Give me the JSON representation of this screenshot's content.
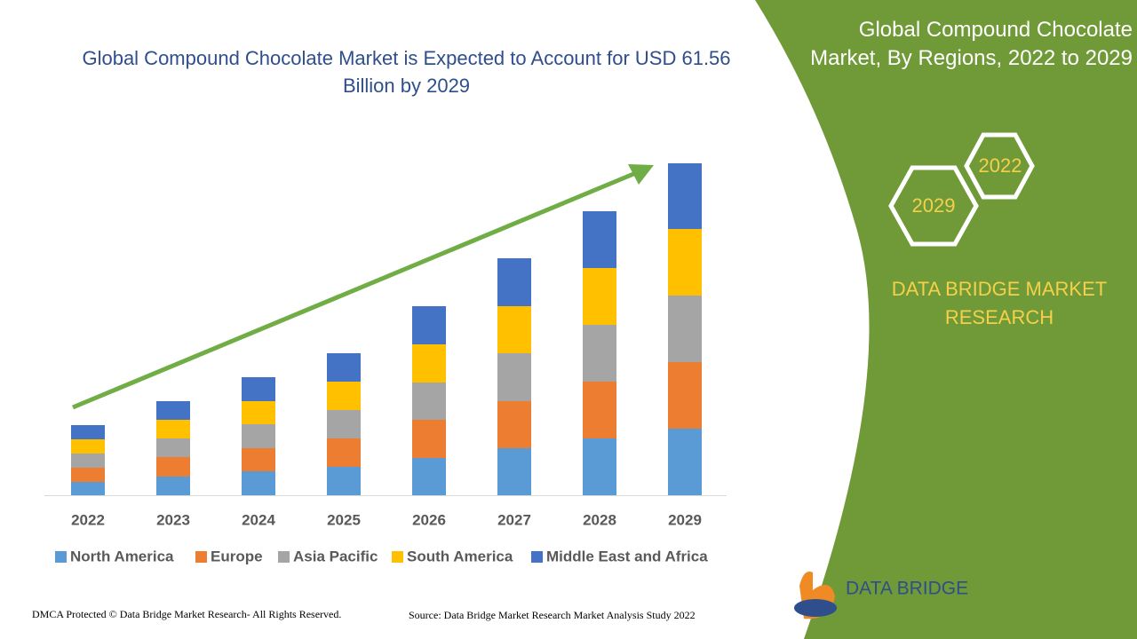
{
  "chart_data": {
    "type": "stacked-bar",
    "title": "Global Compound Chocolate Market is Expected to Account for USD 61.56 Billion by 2029",
    "categories": [
      "2022",
      "2023",
      "2024",
      "2025",
      "2026",
      "2027",
      "2028",
      "2029"
    ],
    "series": [
      {
        "name": "North America",
        "color": "#5b9bd5",
        "values": [
          15,
          21,
          27,
          32,
          42,
          53,
          64,
          75
        ]
      },
      {
        "name": "Europe",
        "color": "#ed7d31",
        "values": [
          16,
          22,
          26,
          32,
          43,
          53,
          64,
          75
        ]
      },
      {
        "name": "Asia Pacific",
        "color": "#a5a5a5",
        "values": [
          16,
          21,
          27,
          32,
          42,
          54,
          64,
          75
        ]
      },
      {
        "name": "South America",
        "color": "#ffc000",
        "values": [
          16,
          21,
          26,
          32,
          43,
          53,
          64,
          75
        ]
      },
      {
        "name": "Middle East and Africa",
        "color": "#4472c4",
        "values": [
          16,
          21,
          27,
          32,
          43,
          54,
          64,
          74
        ]
      }
    ]
  },
  "panel": {
    "title": "Global Compound Chocolate Market, By Regions, 2022 to 2029",
    "hexagon_top": "2022",
    "hexagon_bottom": "2029",
    "brand": "DATA BRIDGE MARKET RESEARCH"
  },
  "logo": {
    "name": "DATA BRIDGE"
  },
  "footer": {
    "copyright": "DMCA Protected © Data Bridge Market Research- All Rights Reserved.",
    "source": "Source: Data Bridge Market Research Market Analysis Study 2022"
  }
}
